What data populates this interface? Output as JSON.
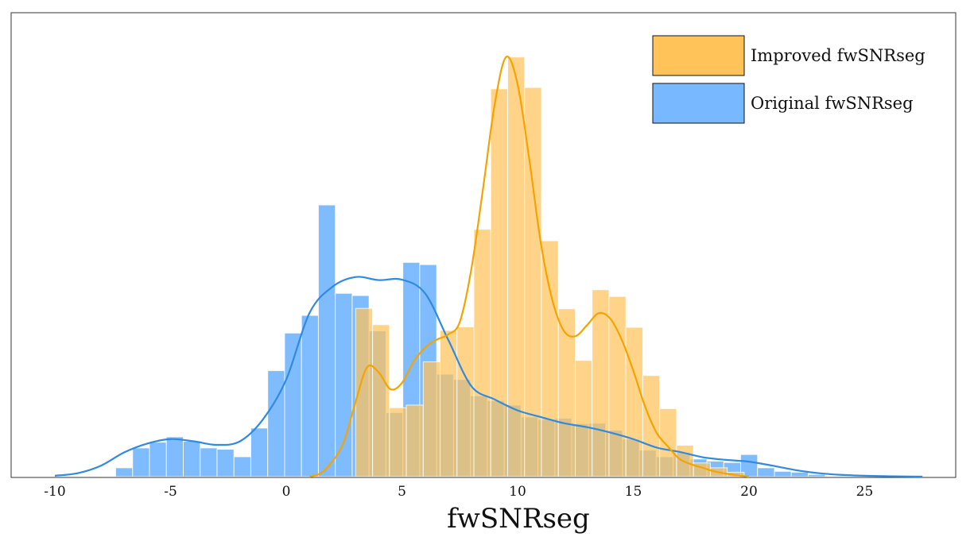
{
  "chart_data": {
    "type": "histogram",
    "xlabel": "fwSNRseg",
    "ylabel": "",
    "xlim": [
      -10,
      27.5
    ],
    "ylim": [
      0,
      1
    ],
    "x_ticks": [
      "-10",
      "-5",
      "0",
      "5",
      "10",
      "15",
      "20",
      "25"
    ],
    "y_ticks": [],
    "grid": false,
    "legend_position": "top-right",
    "bin_width": 0.73,
    "series": [
      {
        "name": "Improved fwSNRseg",
        "color": "#FFC35A",
        "kde_color": "#F5A300",
        "bins": [
          [
            3.0,
            0.381
          ],
          [
            3.73,
            0.344
          ],
          [
            4.46,
            0.156
          ],
          [
            5.19,
            0.162
          ],
          [
            5.92,
            0.26
          ],
          [
            6.65,
            0.331
          ],
          [
            7.38,
            0.339
          ],
          [
            8.11,
            0.56
          ],
          [
            8.84,
            0.878
          ],
          [
            9.57,
            0.95
          ],
          [
            10.3,
            0.881
          ],
          [
            11.03,
            0.534
          ],
          [
            11.76,
            0.38
          ],
          [
            12.49,
            0.263
          ],
          [
            13.22,
            0.423
          ],
          [
            13.95,
            0.408
          ],
          [
            14.68,
            0.338
          ],
          [
            15.41,
            0.229
          ],
          [
            16.14,
            0.154
          ],
          [
            16.87,
            0.071
          ],
          [
            17.6,
            0.031
          ],
          [
            18.33,
            0.02
          ],
          [
            19.06,
            0.01
          ]
        ],
        "kde": [
          [
            1.0,
            0.0
          ],
          [
            1.5,
            0.008
          ],
          [
            2.0,
            0.035
          ],
          [
            2.5,
            0.08
          ],
          [
            3.0,
            0.17
          ],
          [
            3.5,
            0.248
          ],
          [
            4.0,
            0.236
          ],
          [
            4.5,
            0.198
          ],
          [
            5.0,
            0.212
          ],
          [
            5.5,
            0.26
          ],
          [
            6.0,
            0.292
          ],
          [
            6.5,
            0.31
          ],
          [
            7.0,
            0.322
          ],
          [
            7.5,
            0.35
          ],
          [
            8.0,
            0.47
          ],
          [
            8.5,
            0.65
          ],
          [
            9.0,
            0.84
          ],
          [
            9.5,
            0.95
          ],
          [
            10.0,
            0.888
          ],
          [
            10.5,
            0.72
          ],
          [
            11.0,
            0.53
          ],
          [
            11.5,
            0.4
          ],
          [
            12.0,
            0.33
          ],
          [
            12.5,
            0.318
          ],
          [
            13.0,
            0.343
          ],
          [
            13.5,
            0.37
          ],
          [
            14.0,
            0.358
          ],
          [
            14.5,
            0.31
          ],
          [
            15.0,
            0.24
          ],
          [
            15.5,
            0.16
          ],
          [
            16.0,
            0.1
          ],
          [
            16.5,
            0.068
          ],
          [
            17.0,
            0.04
          ],
          [
            17.5,
            0.028
          ],
          [
            18.0,
            0.02
          ],
          [
            18.5,
            0.012
          ],
          [
            19.0,
            0.007
          ],
          [
            19.5,
            0.003
          ],
          [
            20.0,
            0.0
          ]
        ]
      },
      {
        "name": "Original fwSNRseg",
        "color": "#78B8FF",
        "kde_color": "#2F8AE0",
        "bins": [
          [
            -7.37,
            0.02
          ],
          [
            -6.64,
            0.065
          ],
          [
            -5.91,
            0.078
          ],
          [
            -5.18,
            0.09
          ],
          [
            -4.45,
            0.08
          ],
          [
            -3.72,
            0.065
          ],
          [
            -2.99,
            0.062
          ],
          [
            -2.26,
            0.045
          ],
          [
            -1.53,
            0.11
          ],
          [
            -0.8,
            0.24
          ],
          [
            -0.07,
            0.325
          ],
          [
            0.66,
            0.365
          ],
          [
            1.39,
            0.615
          ],
          [
            2.12,
            0.415
          ],
          [
            2.85,
            0.41
          ],
          [
            3.58,
            0.33
          ],
          [
            4.31,
            0.145
          ],
          [
            5.04,
            0.485
          ],
          [
            5.77,
            0.48
          ],
          [
            6.5,
            0.232
          ],
          [
            7.23,
            0.22
          ],
          [
            7.96,
            0.183
          ],
          [
            8.69,
            0.172
          ],
          [
            9.42,
            0.162
          ],
          [
            10.15,
            0.135
          ],
          [
            10.88,
            0.13
          ],
          [
            11.61,
            0.132
          ],
          [
            12.34,
            0.12
          ],
          [
            13.07,
            0.121
          ],
          [
            13.8,
            0.105
          ],
          [
            14.53,
            0.085
          ],
          [
            15.26,
            0.06
          ],
          [
            15.99,
            0.045
          ],
          [
            16.72,
            0.055
          ],
          [
            17.45,
            0.04
          ],
          [
            18.18,
            0.035
          ],
          [
            18.91,
            0.032
          ],
          [
            19.64,
            0.05
          ],
          [
            20.37,
            0.02
          ],
          [
            21.1,
            0.012
          ],
          [
            21.83,
            0.01
          ],
          [
            22.56,
            0.005
          ]
        ],
        "kde": [
          [
            -10.0,
            0.002
          ],
          [
            -9.0,
            0.008
          ],
          [
            -8.0,
            0.025
          ],
          [
            -7.0,
            0.055
          ],
          [
            -6.0,
            0.075
          ],
          [
            -5.0,
            0.085
          ],
          [
            -4.0,
            0.08
          ],
          [
            -3.0,
            0.072
          ],
          [
            -2.0,
            0.08
          ],
          [
            -1.0,
            0.13
          ],
          [
            0.0,
            0.22
          ],
          [
            1.0,
            0.37
          ],
          [
            2.0,
            0.43
          ],
          [
            3.0,
            0.452
          ],
          [
            4.0,
            0.445
          ],
          [
            5.0,
            0.446
          ],
          [
            6.0,
            0.415
          ],
          [
            7.0,
            0.31
          ],
          [
            8.0,
            0.205
          ],
          [
            9.0,
            0.175
          ],
          [
            10.0,
            0.15
          ],
          [
            11.0,
            0.135
          ],
          [
            12.0,
            0.121
          ],
          [
            13.0,
            0.112
          ],
          [
            14.0,
            0.1
          ],
          [
            15.0,
            0.085
          ],
          [
            16.0,
            0.066
          ],
          [
            17.0,
            0.056
          ],
          [
            18.0,
            0.044
          ],
          [
            19.0,
            0.038
          ],
          [
            20.0,
            0.034
          ],
          [
            21.0,
            0.025
          ],
          [
            22.0,
            0.015
          ],
          [
            23.0,
            0.008
          ],
          [
            24.0,
            0.004
          ],
          [
            25.0,
            0.002
          ],
          [
            26.0,
            0.001
          ],
          [
            27.5,
            0.0
          ]
        ]
      }
    ]
  }
}
